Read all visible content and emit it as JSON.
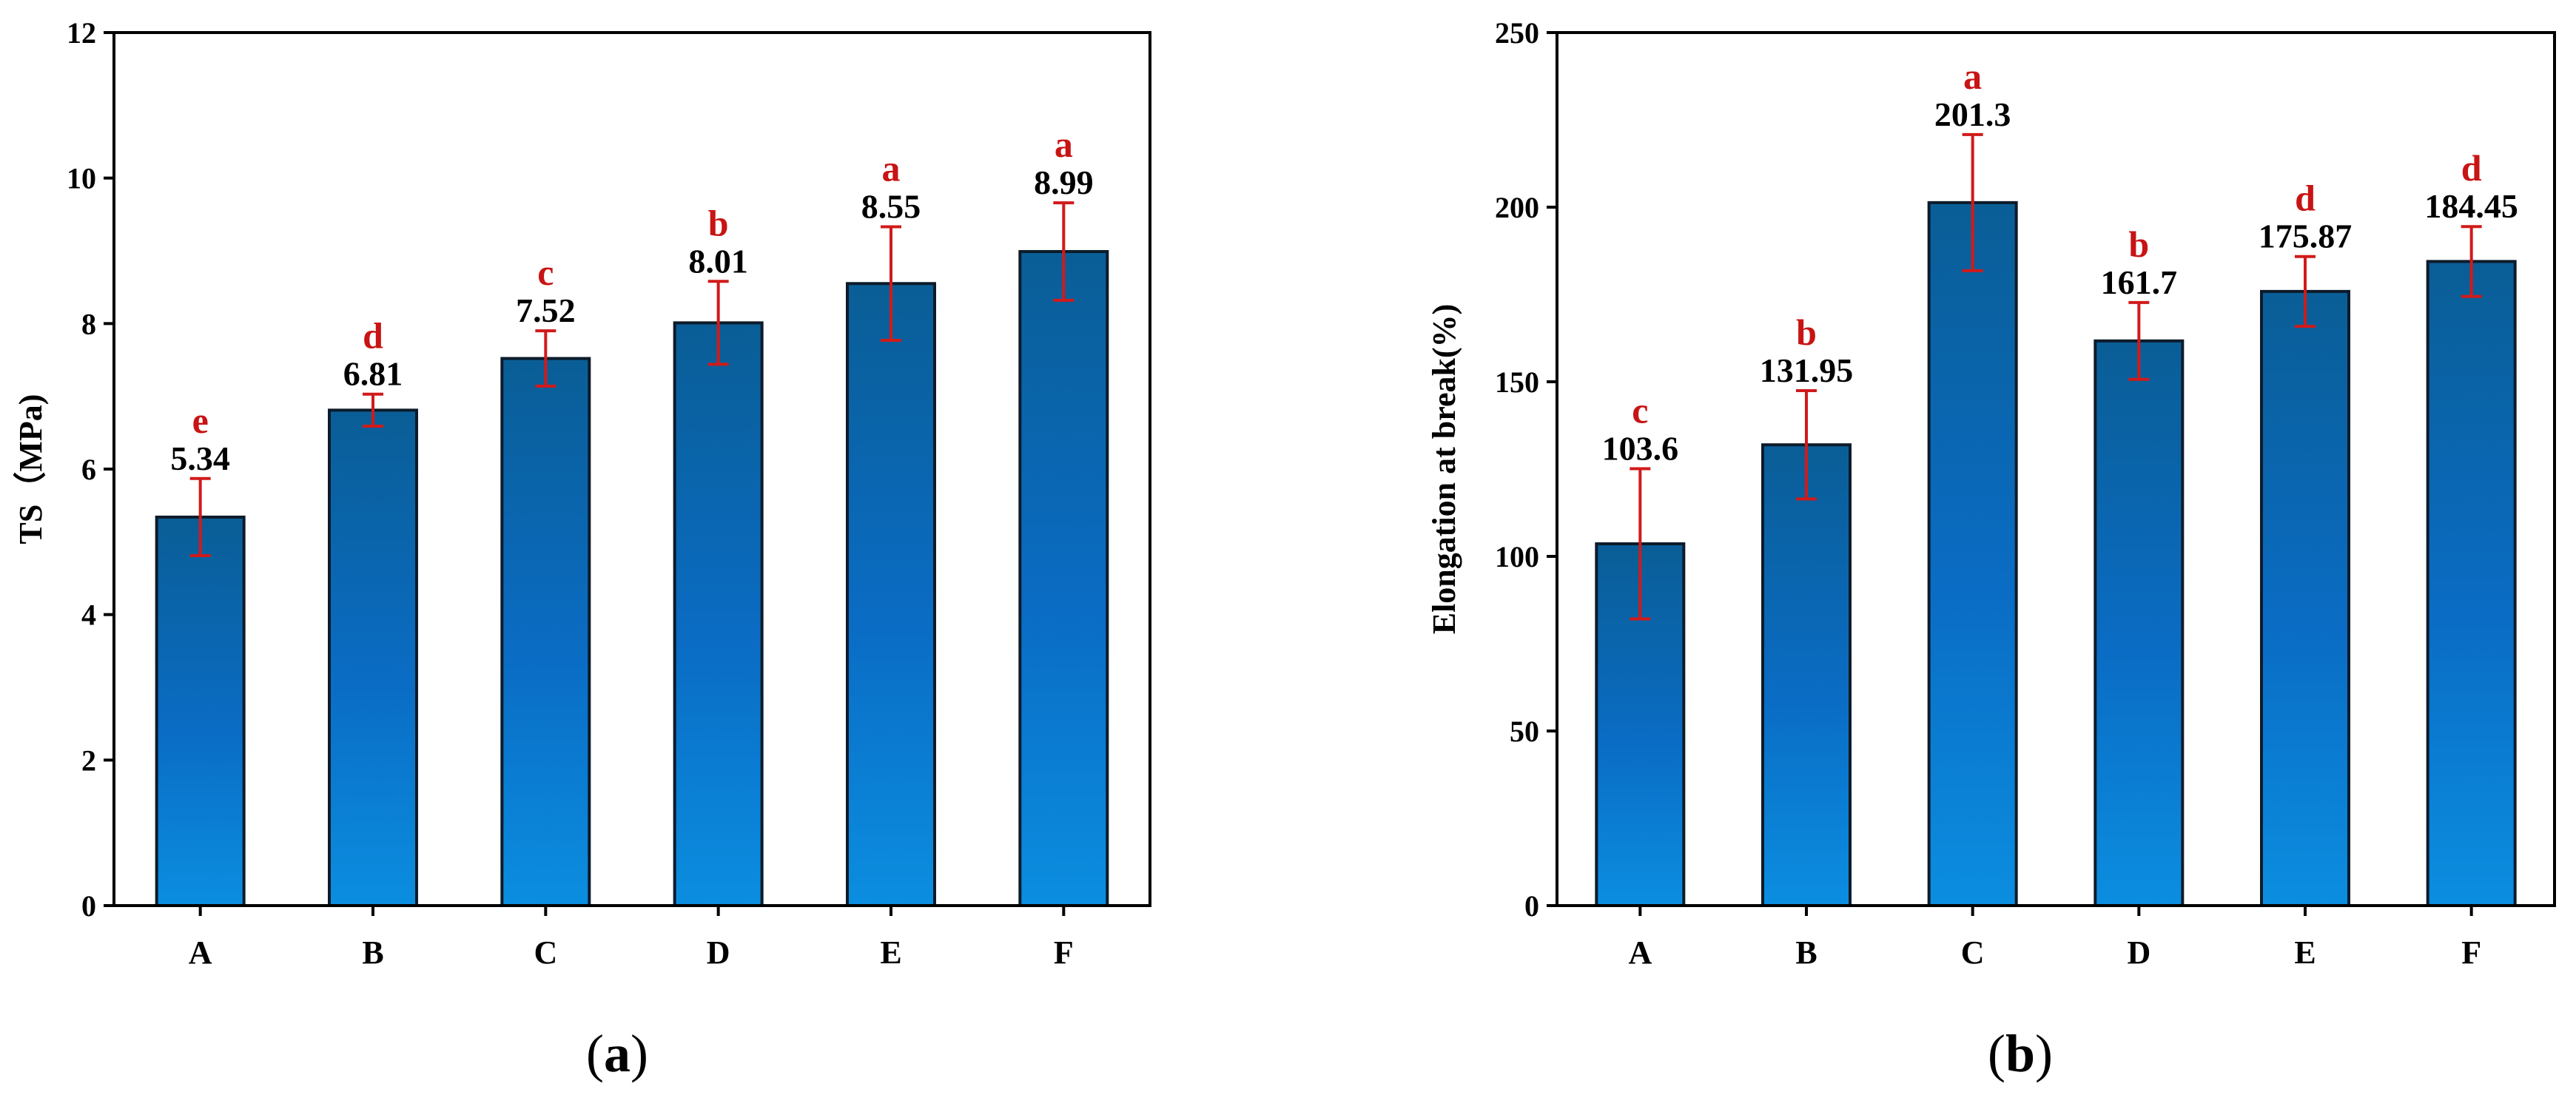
{
  "colors": {
    "bar_top": "#0a5e96",
    "bar_mid": "#0a6cc4",
    "bar_bottom": "#0b8ee0",
    "error": "#d11a1a",
    "significance": "#c81414"
  },
  "chart_data": [
    {
      "type": "bar",
      "panel": "a",
      "title": "",
      "xlabel": "",
      "ylabel": "TS（MPa)",
      "ylim": [
        0,
        12
      ],
      "yticks": [
        0,
        2,
        4,
        6,
        8,
        10,
        12
      ],
      "categories": [
        "A",
        "B",
        "C",
        "D",
        "E",
        "F"
      ],
      "values": [
        5.34,
        6.81,
        7.52,
        8.01,
        8.55,
        8.99
      ],
      "value_labels": [
        "5.34",
        "6.81",
        "7.52",
        "8.01",
        "8.55",
        "8.99"
      ],
      "errors": [
        0.53,
        0.22,
        0.38,
        0.57,
        0.78,
        0.67
      ],
      "significance": [
        "e",
        "d",
        "c",
        "b",
        "a",
        "a"
      ],
      "caption_open": "(",
      "caption_letter": "a",
      "caption_close": ")"
    },
    {
      "type": "bar",
      "panel": "b",
      "title": "",
      "xlabel": "",
      "ylabel": "Elongation at break(%)",
      "ylim": [
        0,
        250
      ],
      "yticks": [
        0,
        50,
        100,
        150,
        200,
        250
      ],
      "categories": [
        "A",
        "B",
        "C",
        "D",
        "E",
        "F"
      ],
      "values": [
        103.6,
        131.95,
        201.3,
        161.7,
        175.87,
        184.45
      ],
      "value_labels": [
        "103.6",
        "131.95",
        "201.3",
        "161.7",
        "175.87",
        "184.45"
      ],
      "errors": [
        21.5,
        15.5,
        19.5,
        11.0,
        10.0,
        10.0
      ],
      "significance": [
        "c",
        "b",
        "a",
        "b",
        "d",
        "d"
      ],
      "caption_open": "(",
      "caption_letter": "b",
      "caption_close": ")"
    }
  ]
}
